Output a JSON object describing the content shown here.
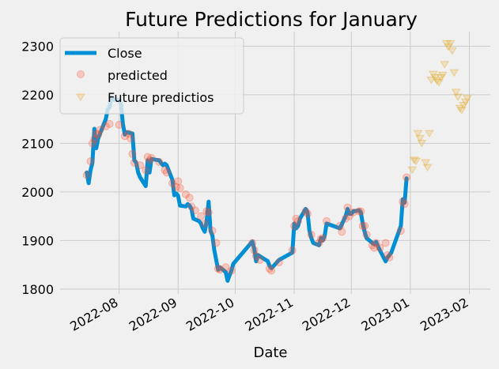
{
  "chart_data": {
    "type": "line",
    "title": "Future Predictions for January",
    "xlabel": "Date",
    "ylabel": "",
    "xlim": [
      "2022-07-01",
      "2023-02-12"
    ],
    "ylim": [
      1790,
      2330
    ],
    "grid": true,
    "legend_position": "upper-left",
    "x_ticks": [
      "2022-08-01",
      "2022-09-01",
      "2022-10-01",
      "2022-11-01",
      "2022-12-01",
      "2023-01-01",
      "2023-02-01"
    ],
    "x_tick_labels": [
      "2022-08",
      "2022-09",
      "2022-10",
      "2022-11",
      "2022-12",
      "2023-01",
      "2023-02"
    ],
    "y_ticks": [
      1800,
      1900,
      2000,
      2100,
      2200,
      2300
    ],
    "series": [
      {
        "name": "Close",
        "kind": "line",
        "color": "#008fd5",
        "points": [
          [
            "2022-07-15",
            2040
          ],
          [
            "2022-07-16",
            2018
          ],
          [
            "2022-07-17",
            2045
          ],
          [
            "2022-07-18",
            2060
          ],
          [
            "2022-07-19",
            2130
          ],
          [
            "2022-07-20",
            2090
          ],
          [
            "2022-07-21",
            2110
          ],
          [
            "2022-07-22",
            2120
          ],
          [
            "2022-07-25",
            2150
          ],
          [
            "2022-07-26",
            2170
          ],
          [
            "2022-07-27",
            2175
          ],
          [
            "2022-07-28",
            2195
          ],
          [
            "2022-07-29",
            2190
          ],
          [
            "2022-08-01",
            2190
          ],
          [
            "2022-08-02",
            2180
          ],
          [
            "2022-08-03",
            2140
          ],
          [
            "2022-08-04",
            2118
          ],
          [
            "2022-08-05",
            2123
          ],
          [
            "2022-08-08",
            2120
          ],
          [
            "2022-08-09",
            2065
          ],
          [
            "2022-08-10",
            2060
          ],
          [
            "2022-08-11",
            2040
          ],
          [
            "2022-08-12",
            2030
          ],
          [
            "2022-08-15",
            2012
          ],
          [
            "2022-08-16",
            2065
          ],
          [
            "2022-08-17",
            2040
          ],
          [
            "2022-08-18",
            2068
          ],
          [
            "2022-08-19",
            2067
          ],
          [
            "2022-08-22",
            2065
          ],
          [
            "2022-08-23",
            2060
          ],
          [
            "2022-08-24",
            2055
          ],
          [
            "2022-08-25",
            2058
          ],
          [
            "2022-08-26",
            2055
          ],
          [
            "2022-08-29",
            2025
          ],
          [
            "2022-08-30",
            1993
          ],
          [
            "2022-08-31",
            1997
          ],
          [
            "2022-09-01",
            1992
          ],
          [
            "2022-09-02",
            1972
          ],
          [
            "2022-09-05",
            1970
          ],
          [
            "2022-09-06",
            1975
          ],
          [
            "2022-09-07",
            1972
          ],
          [
            "2022-09-08",
            1965
          ],
          [
            "2022-09-09",
            1945
          ],
          [
            "2022-09-12",
            1940
          ],
          [
            "2022-09-13",
            1935
          ],
          [
            "2022-09-14",
            1925
          ],
          [
            "2022-09-15",
            1918
          ],
          [
            "2022-09-16",
            1940
          ],
          [
            "2022-09-17",
            1980
          ],
          [
            "2022-09-18",
            1920
          ],
          [
            "2022-09-19",
            1910
          ],
          [
            "2022-09-20",
            1880
          ],
          [
            "2022-09-21",
            1860
          ],
          [
            "2022-09-22",
            1840
          ],
          [
            "2022-09-23",
            1845
          ],
          [
            "2022-09-26",
            1835
          ],
          [
            "2022-09-27",
            1817
          ],
          [
            "2022-09-28",
            1828
          ],
          [
            "2022-09-29",
            1838
          ],
          [
            "2022-09-30",
            1852
          ],
          [
            "2022-10-10",
            1898
          ],
          [
            "2022-10-11",
            1883
          ],
          [
            "2022-10-12",
            1857
          ],
          [
            "2022-10-13",
            1870
          ],
          [
            "2022-10-17",
            1860
          ],
          [
            "2022-10-18",
            1858
          ],
          [
            "2022-10-19",
            1848
          ],
          [
            "2022-10-20",
            1843
          ],
          [
            "2022-10-21",
            1847
          ],
          [
            "2022-10-24",
            1860
          ],
          [
            "2022-10-31",
            1875
          ],
          [
            "2022-11-01",
            1935
          ],
          [
            "2022-11-02",
            1925
          ],
          [
            "2022-11-03",
            1930
          ],
          [
            "2022-11-04",
            1945
          ],
          [
            "2022-11-07",
            1965
          ],
          [
            "2022-11-08",
            1958
          ],
          [
            "2022-11-09",
            1920
          ],
          [
            "2022-11-10",
            1905
          ],
          [
            "2022-11-11",
            1895
          ],
          [
            "2022-11-14",
            1890
          ],
          [
            "2022-11-15",
            1905
          ],
          [
            "2022-11-16",
            1900
          ],
          [
            "2022-11-17",
            1910
          ],
          [
            "2022-11-18",
            1935
          ],
          [
            "2022-11-25",
            1925
          ],
          [
            "2022-11-28",
            1950
          ],
          [
            "2022-11-29",
            1965
          ],
          [
            "2022-11-30",
            1955
          ],
          [
            "2022-12-01",
            1955
          ],
          [
            "2022-12-02",
            1960
          ],
          [
            "2022-12-05",
            1962
          ],
          [
            "2022-12-06",
            1958
          ],
          [
            "2022-12-07",
            1935
          ],
          [
            "2022-12-08",
            1918
          ],
          [
            "2022-12-09",
            1905
          ],
          [
            "2022-12-12",
            1895
          ],
          [
            "2022-12-13",
            1892
          ],
          [
            "2022-12-14",
            1897
          ],
          [
            "2022-12-15",
            1888
          ],
          [
            "2022-12-16",
            1880
          ],
          [
            "2022-12-19",
            1857
          ],
          [
            "2022-12-20",
            1865
          ],
          [
            "2022-12-21",
            1870
          ],
          [
            "2022-12-22",
            1875
          ],
          [
            "2022-12-27",
            1930
          ],
          [
            "2022-12-28",
            1985
          ],
          [
            "2022-12-29",
            1978
          ],
          [
            "2022-12-30",
            2028
          ]
        ]
      },
      {
        "name": "predicted",
        "kind": "scatter",
        "marker": "circle",
        "color": "#fc4f30",
        "points": [
          [
            "2022-07-15",
            2035
          ],
          [
            "2022-07-17",
            2063
          ],
          [
            "2022-07-18",
            2100
          ],
          [
            "2022-07-19",
            2108
          ],
          [
            "2022-07-20",
            2120
          ],
          [
            "2022-07-21",
            2118
          ],
          [
            "2022-07-22",
            2128
          ],
          [
            "2022-07-25",
            2135
          ],
          [
            "2022-07-27",
            2140
          ],
          [
            "2022-08-01",
            2138
          ],
          [
            "2022-08-04",
            2115
          ],
          [
            "2022-08-06",
            2120
          ],
          [
            "2022-08-07",
            2110
          ],
          [
            "2022-08-08",
            2078
          ],
          [
            "2022-08-09",
            2060
          ],
          [
            "2022-08-12",
            2055
          ],
          [
            "2022-08-15",
            2045
          ],
          [
            "2022-08-16",
            2072
          ],
          [
            "2022-08-17",
            2065
          ],
          [
            "2022-08-18",
            2070
          ],
          [
            "2022-08-22",
            2062
          ],
          [
            "2022-08-25",
            2045
          ],
          [
            "2022-08-26",
            2040
          ],
          [
            "2022-08-29",
            2018
          ],
          [
            "2022-08-31",
            2010
          ],
          [
            "2022-09-01",
            2022
          ],
          [
            "2022-09-02",
            2008
          ],
          [
            "2022-09-05",
            1995
          ],
          [
            "2022-09-07",
            1988
          ],
          [
            "2022-09-08",
            1970
          ],
          [
            "2022-09-10",
            1962
          ],
          [
            "2022-09-13",
            1950
          ],
          [
            "2022-09-15",
            1935
          ],
          [
            "2022-09-16",
            1960
          ],
          [
            "2022-09-17",
            1958
          ],
          [
            "2022-09-19",
            1920
          ],
          [
            "2022-09-21",
            1895
          ],
          [
            "2022-09-22",
            1842
          ],
          [
            "2022-09-23",
            1840
          ],
          [
            "2022-09-26",
            1845
          ],
          [
            "2022-09-29",
            1838
          ],
          [
            "2022-10-10",
            1895
          ],
          [
            "2022-10-11",
            1880
          ],
          [
            "2022-10-12",
            1868
          ],
          [
            "2022-10-14",
            1860
          ],
          [
            "2022-10-19",
            1842
          ],
          [
            "2022-10-20",
            1838
          ],
          [
            "2022-10-24",
            1855
          ],
          [
            "2022-10-31",
            1880
          ],
          [
            "2022-11-01",
            1930
          ],
          [
            "2022-11-02",
            1945
          ],
          [
            "2022-11-03",
            1940
          ],
          [
            "2022-11-07",
            1960
          ],
          [
            "2022-11-08",
            1955
          ],
          [
            "2022-11-10",
            1912
          ],
          [
            "2022-11-14",
            1895
          ],
          [
            "2022-11-15",
            1903
          ],
          [
            "2022-11-16",
            1905
          ],
          [
            "2022-11-18",
            1940
          ],
          [
            "2022-11-25",
            1930
          ],
          [
            "2022-11-26",
            1918
          ],
          [
            "2022-11-28",
            1945
          ],
          [
            "2022-11-29",
            1968
          ],
          [
            "2022-11-30",
            1950
          ],
          [
            "2022-12-02",
            1958
          ],
          [
            "2022-12-05",
            1960
          ],
          [
            "2022-12-06",
            1960
          ],
          [
            "2022-12-07",
            1930
          ],
          [
            "2022-12-08",
            1930
          ],
          [
            "2022-12-09",
            1912
          ],
          [
            "2022-12-12",
            1890
          ],
          [
            "2022-12-13",
            1885
          ],
          [
            "2022-12-14",
            1895
          ],
          [
            "2022-12-16",
            1885
          ],
          [
            "2022-12-19",
            1895
          ],
          [
            "2022-12-20",
            1870
          ],
          [
            "2022-12-21",
            1865
          ],
          [
            "2022-12-27",
            1920
          ],
          [
            "2022-12-28",
            1980
          ],
          [
            "2022-12-29",
            1975
          ],
          [
            "2022-12-30",
            2030
          ]
        ]
      },
      {
        "name": "Future predictios",
        "kind": "scatter",
        "marker": "triangle-down",
        "color": "#e5ae38",
        "points": [
          [
            "2023-01-02",
            2045
          ],
          [
            "2023-01-03",
            2065
          ],
          [
            "2023-01-04",
            2063
          ],
          [
            "2023-01-05",
            2120
          ],
          [
            "2023-01-06",
            2110
          ],
          [
            "2023-01-07",
            2100
          ],
          [
            "2023-01-09",
            2060
          ],
          [
            "2023-01-10",
            2050
          ],
          [
            "2023-01-11",
            2120
          ],
          [
            "2023-01-12",
            2230
          ],
          [
            "2023-01-13",
            2242
          ],
          [
            "2023-01-14",
            2235
          ],
          [
            "2023-01-15",
            2228
          ],
          [
            "2023-01-16",
            2225
          ],
          [
            "2023-01-17",
            2235
          ],
          [
            "2023-01-18",
            2240
          ],
          [
            "2023-01-19",
            2262
          ],
          [
            "2023-01-20",
            2305
          ],
          [
            "2023-01-21",
            2298
          ],
          [
            "2023-01-22",
            2305
          ],
          [
            "2023-01-23",
            2290
          ],
          [
            "2023-01-24",
            2245
          ],
          [
            "2023-01-25",
            2205
          ],
          [
            "2023-01-26",
            2195
          ],
          [
            "2023-01-27",
            2172
          ],
          [
            "2023-01-28",
            2168
          ],
          [
            "2023-01-29",
            2178
          ],
          [
            "2023-01-30",
            2185
          ],
          [
            "2023-01-31",
            2192
          ]
        ]
      }
    ]
  }
}
